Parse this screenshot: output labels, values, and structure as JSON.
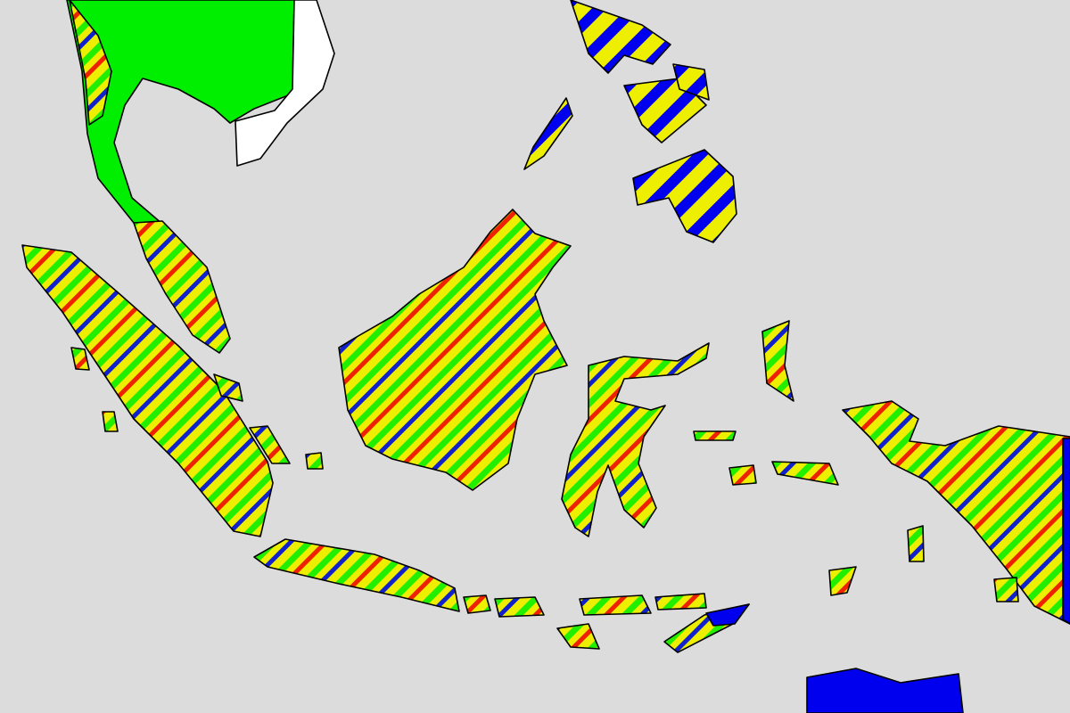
{
  "map": {
    "colors": {
      "sea": "#dcdcdc",
      "outline": "#000000",
      "solid_green": "#00ee00",
      "white": "#ffffff",
      "blue": "#0000ee",
      "stripe_yellow": "#eeee00",
      "stripe_green": "#22ee00",
      "stripe_red": "#ee2200",
      "stripe_blue": "#1122cc"
    },
    "fill_styles": {
      "multi_stripe": [
        "yellow",
        "green",
        "red",
        "blue"
      ],
      "two_stripe": [
        "yellow",
        "blue"
      ],
      "solid_green": "green",
      "solid_white": "white",
      "solid_blue": "blue"
    }
  }
}
